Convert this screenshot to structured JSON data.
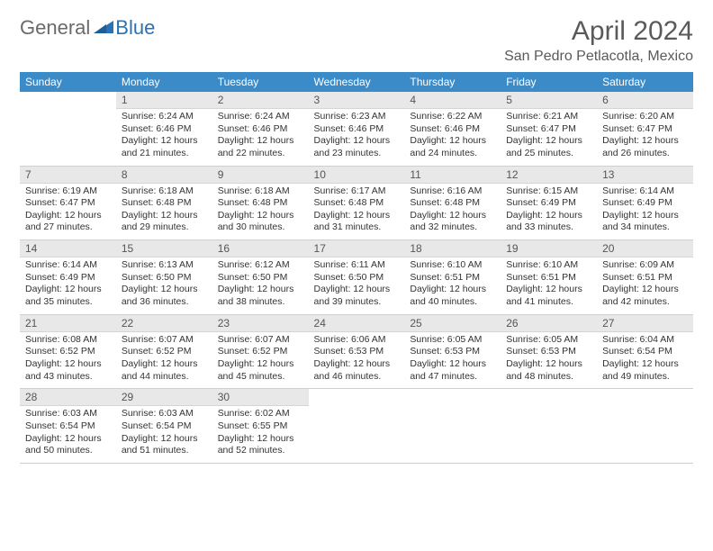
{
  "logo": {
    "general": "General",
    "blue": "Blue"
  },
  "title": "April 2024",
  "location": "San Pedro Petlacotla, Mexico",
  "weekdays": [
    "Sunday",
    "Monday",
    "Tuesday",
    "Wednesday",
    "Thursday",
    "Friday",
    "Saturday"
  ],
  "colors": {
    "header_bg": "#3b8bc9",
    "header_fg": "#ffffff",
    "daynum_bg": "#e8e8e8",
    "logo_blue": "#2a72b5",
    "logo_gray": "#6a6a6a"
  },
  "weeks": [
    [
      {
        "n": "",
        "sr": "",
        "ss": "",
        "dl": ""
      },
      {
        "n": "1",
        "sr": "Sunrise: 6:24 AM",
        "ss": "Sunset: 6:46 PM",
        "dl": "Daylight: 12 hours and 21 minutes."
      },
      {
        "n": "2",
        "sr": "Sunrise: 6:24 AM",
        "ss": "Sunset: 6:46 PM",
        "dl": "Daylight: 12 hours and 22 minutes."
      },
      {
        "n": "3",
        "sr": "Sunrise: 6:23 AM",
        "ss": "Sunset: 6:46 PM",
        "dl": "Daylight: 12 hours and 23 minutes."
      },
      {
        "n": "4",
        "sr": "Sunrise: 6:22 AM",
        "ss": "Sunset: 6:46 PM",
        "dl": "Daylight: 12 hours and 24 minutes."
      },
      {
        "n": "5",
        "sr": "Sunrise: 6:21 AM",
        "ss": "Sunset: 6:47 PM",
        "dl": "Daylight: 12 hours and 25 minutes."
      },
      {
        "n": "6",
        "sr": "Sunrise: 6:20 AM",
        "ss": "Sunset: 6:47 PM",
        "dl": "Daylight: 12 hours and 26 minutes."
      }
    ],
    [
      {
        "n": "7",
        "sr": "Sunrise: 6:19 AM",
        "ss": "Sunset: 6:47 PM",
        "dl": "Daylight: 12 hours and 27 minutes."
      },
      {
        "n": "8",
        "sr": "Sunrise: 6:18 AM",
        "ss": "Sunset: 6:48 PM",
        "dl": "Daylight: 12 hours and 29 minutes."
      },
      {
        "n": "9",
        "sr": "Sunrise: 6:18 AM",
        "ss": "Sunset: 6:48 PM",
        "dl": "Daylight: 12 hours and 30 minutes."
      },
      {
        "n": "10",
        "sr": "Sunrise: 6:17 AM",
        "ss": "Sunset: 6:48 PM",
        "dl": "Daylight: 12 hours and 31 minutes."
      },
      {
        "n": "11",
        "sr": "Sunrise: 6:16 AM",
        "ss": "Sunset: 6:48 PM",
        "dl": "Daylight: 12 hours and 32 minutes."
      },
      {
        "n": "12",
        "sr": "Sunrise: 6:15 AM",
        "ss": "Sunset: 6:49 PM",
        "dl": "Daylight: 12 hours and 33 minutes."
      },
      {
        "n": "13",
        "sr": "Sunrise: 6:14 AM",
        "ss": "Sunset: 6:49 PM",
        "dl": "Daylight: 12 hours and 34 minutes."
      }
    ],
    [
      {
        "n": "14",
        "sr": "Sunrise: 6:14 AM",
        "ss": "Sunset: 6:49 PM",
        "dl": "Daylight: 12 hours and 35 minutes."
      },
      {
        "n": "15",
        "sr": "Sunrise: 6:13 AM",
        "ss": "Sunset: 6:50 PM",
        "dl": "Daylight: 12 hours and 36 minutes."
      },
      {
        "n": "16",
        "sr": "Sunrise: 6:12 AM",
        "ss": "Sunset: 6:50 PM",
        "dl": "Daylight: 12 hours and 38 minutes."
      },
      {
        "n": "17",
        "sr": "Sunrise: 6:11 AM",
        "ss": "Sunset: 6:50 PM",
        "dl": "Daylight: 12 hours and 39 minutes."
      },
      {
        "n": "18",
        "sr": "Sunrise: 6:10 AM",
        "ss": "Sunset: 6:51 PM",
        "dl": "Daylight: 12 hours and 40 minutes."
      },
      {
        "n": "19",
        "sr": "Sunrise: 6:10 AM",
        "ss": "Sunset: 6:51 PM",
        "dl": "Daylight: 12 hours and 41 minutes."
      },
      {
        "n": "20",
        "sr": "Sunrise: 6:09 AM",
        "ss": "Sunset: 6:51 PM",
        "dl": "Daylight: 12 hours and 42 minutes."
      }
    ],
    [
      {
        "n": "21",
        "sr": "Sunrise: 6:08 AM",
        "ss": "Sunset: 6:52 PM",
        "dl": "Daylight: 12 hours and 43 minutes."
      },
      {
        "n": "22",
        "sr": "Sunrise: 6:07 AM",
        "ss": "Sunset: 6:52 PM",
        "dl": "Daylight: 12 hours and 44 minutes."
      },
      {
        "n": "23",
        "sr": "Sunrise: 6:07 AM",
        "ss": "Sunset: 6:52 PM",
        "dl": "Daylight: 12 hours and 45 minutes."
      },
      {
        "n": "24",
        "sr": "Sunrise: 6:06 AM",
        "ss": "Sunset: 6:53 PM",
        "dl": "Daylight: 12 hours and 46 minutes."
      },
      {
        "n": "25",
        "sr": "Sunrise: 6:05 AM",
        "ss": "Sunset: 6:53 PM",
        "dl": "Daylight: 12 hours and 47 minutes."
      },
      {
        "n": "26",
        "sr": "Sunrise: 6:05 AM",
        "ss": "Sunset: 6:53 PM",
        "dl": "Daylight: 12 hours and 48 minutes."
      },
      {
        "n": "27",
        "sr": "Sunrise: 6:04 AM",
        "ss": "Sunset: 6:54 PM",
        "dl": "Daylight: 12 hours and 49 minutes."
      }
    ],
    [
      {
        "n": "28",
        "sr": "Sunrise: 6:03 AM",
        "ss": "Sunset: 6:54 PM",
        "dl": "Daylight: 12 hours and 50 minutes."
      },
      {
        "n": "29",
        "sr": "Sunrise: 6:03 AM",
        "ss": "Sunset: 6:54 PM",
        "dl": "Daylight: 12 hours and 51 minutes."
      },
      {
        "n": "30",
        "sr": "Sunrise: 6:02 AM",
        "ss": "Sunset: 6:55 PM",
        "dl": "Daylight: 12 hours and 52 minutes."
      },
      {
        "n": "",
        "sr": "",
        "ss": "",
        "dl": ""
      },
      {
        "n": "",
        "sr": "",
        "ss": "",
        "dl": ""
      },
      {
        "n": "",
        "sr": "",
        "ss": "",
        "dl": ""
      },
      {
        "n": "",
        "sr": "",
        "ss": "",
        "dl": ""
      }
    ]
  ]
}
